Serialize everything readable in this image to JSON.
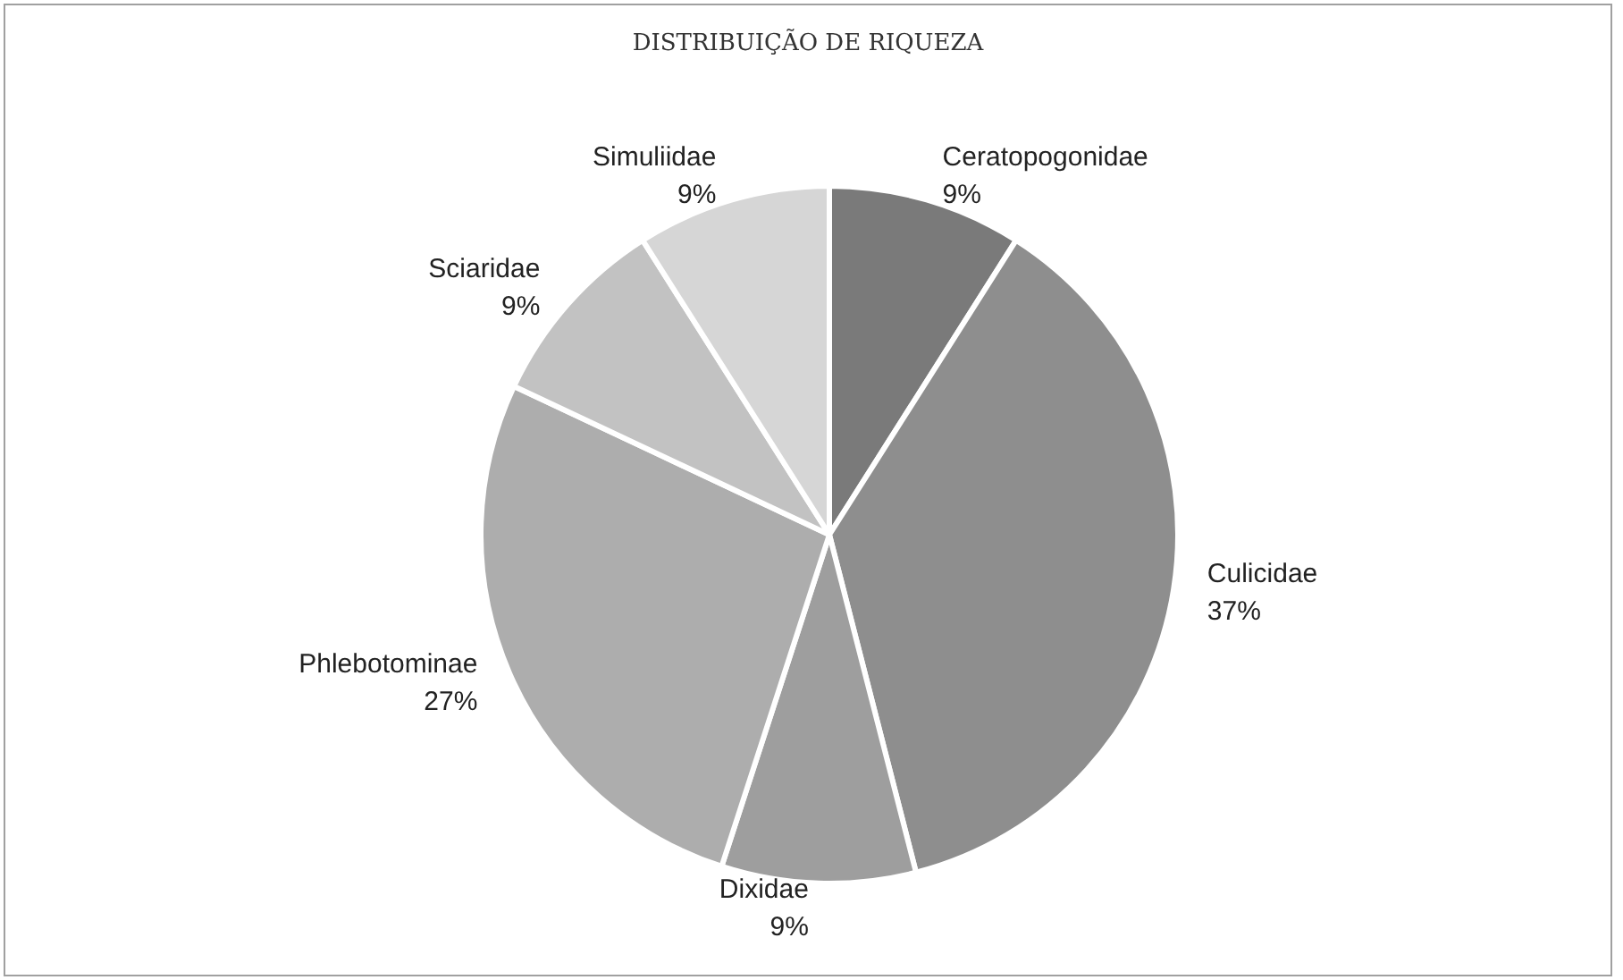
{
  "chart_data": {
    "type": "pie",
    "title": "DISTRIBUIÇÃO DE RIQUEZA",
    "categories": [
      "Ceratopogonidae",
      "Culicidae",
      "Dixidae",
      "Phlebotominae",
      "Sciaridae",
      "Simuliidae"
    ],
    "values": [
      9,
      37,
      9,
      27,
      9,
      9
    ],
    "value_labels": [
      "9%",
      "37%",
      "9%",
      "27%",
      "9%",
      "9%"
    ],
    "colors": [
      "#7a7a7a",
      "#8e8e8e",
      "#9e9e9e",
      "#adadad",
      "#c2c2c2",
      "#d6d6d6"
    ],
    "legend": false
  }
}
